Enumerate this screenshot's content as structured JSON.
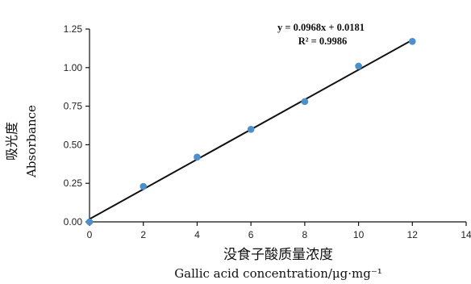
{
  "chart_data": {
    "type": "scatter",
    "x": [
      0,
      2,
      4,
      6,
      8,
      10,
      12
    ],
    "y": [
      0.0,
      0.23,
      0.42,
      0.6,
      0.78,
      1.01,
      1.17
    ],
    "fit_line": {
      "slope": 0.0968,
      "intercept": 0.0181
    },
    "equation_label": "y = 0.0968x + 0.0181",
    "r2_label": "R² = 0.9986",
    "xlabel_zh": "没食子酸质量浓度",
    "xlabel_en": "Gallic acid concentration/μg·mg⁻¹",
    "ylabel_zh": "吸光度",
    "ylabel_en": "Absorbance",
    "xlim": [
      0,
      14
    ],
    "ylim": [
      0,
      1.25
    ],
    "xticks": [
      0,
      2,
      4,
      6,
      8,
      10,
      12,
      14
    ],
    "yticks": [
      0.0,
      0.25,
      0.5,
      0.75,
      1.0,
      1.25
    ],
    "xtick_labels": [
      "0",
      "2",
      "4",
      "6",
      "8",
      "10",
      "12",
      "14"
    ],
    "ytick_labels": [
      "0.00",
      "0.25",
      "0.50",
      "0.75",
      "1.00",
      "1.25"
    ],
    "point_color": "#4a8fcf",
    "line_color": "#111111",
    "grid": false
  }
}
